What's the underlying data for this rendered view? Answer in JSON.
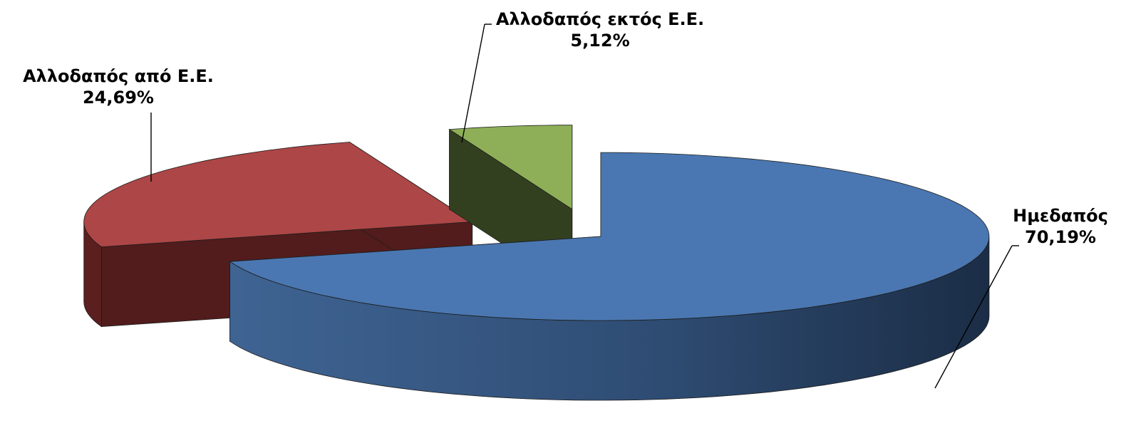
{
  "chart_data": {
    "type": "pie",
    "categories": [
      "Ημεδαπός",
      "Αλλοδαπός από Ε.Ε.",
      "Αλλοδαπός εκτός Ε.Ε."
    ],
    "values": [
      70.19,
      24.69,
      5.12
    ],
    "value_labels": [
      "70,19%",
      "24,69%",
      "5,12%"
    ],
    "colors": [
      "#4a77b1",
      "#ad4646",
      "#8eaf58"
    ],
    "title": "",
    "legend": "none",
    "style": "exploded 3D pie"
  }
}
